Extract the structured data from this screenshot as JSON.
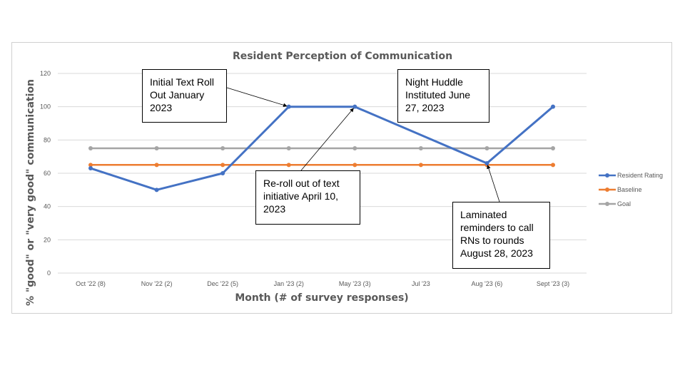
{
  "chart_data": {
    "type": "line",
    "title": "Resident Perception of Communication",
    "xlabel": "Month (# of survey responses)",
    "ylabel": "% \"good\" or \"very good\" communication",
    "categories": [
      "Oct '22 (8)",
      "Nov '22 (2)",
      "Dec '22 (5)",
      "Jan '23 (2)",
      "May '23 (3)",
      "Jul '23",
      "Aug '23 (6)",
      "Sept '23 (3)"
    ],
    "ylim": [
      0,
      120
    ],
    "yticks": [
      0,
      20,
      40,
      60,
      80,
      100,
      120
    ],
    "grid": true,
    "legend_position": "right",
    "series": [
      {
        "name": "Resident Rating",
        "color": "#4472c4",
        "values": [
          63,
          50,
          60,
          100,
          100,
          null,
          66,
          100
        ]
      },
      {
        "name": "Baseline",
        "color": "#ed7d31",
        "values": [
          65,
          65,
          65,
          65,
          65,
          65,
          65,
          65
        ]
      },
      {
        "name": "Goal",
        "color": "#a5a5a5",
        "values": [
          75,
          75,
          75,
          75,
          75,
          75,
          75,
          75
        ]
      }
    ],
    "annotations": [
      {
        "text": "Initial Text Roll Out January 2023",
        "lines": [
          "Initial Text Roll",
          "Out January",
          "2023"
        ],
        "target_category": 3,
        "target_value": 100
      },
      {
        "text": "Night Huddle Instituted June 27, 2023",
        "lines": [
          "Night Huddle",
          "Instituted June",
          "27, 2023"
        ]
      },
      {
        "text": "Re-roll out of text initiative April 10, 2023",
        "lines": [
          "Re-roll out of text",
          "initiative April 10,",
          "2023"
        ],
        "target_category": 4,
        "target_value": 100
      },
      {
        "text": "Laminated reminders to call RNs to rounds August 28, 2023",
        "lines": [
          "Laminated",
          "reminders to call",
          "RNs to rounds",
          "August 28, 2023"
        ],
        "target_category": 6,
        "target_value": 66
      }
    ]
  }
}
